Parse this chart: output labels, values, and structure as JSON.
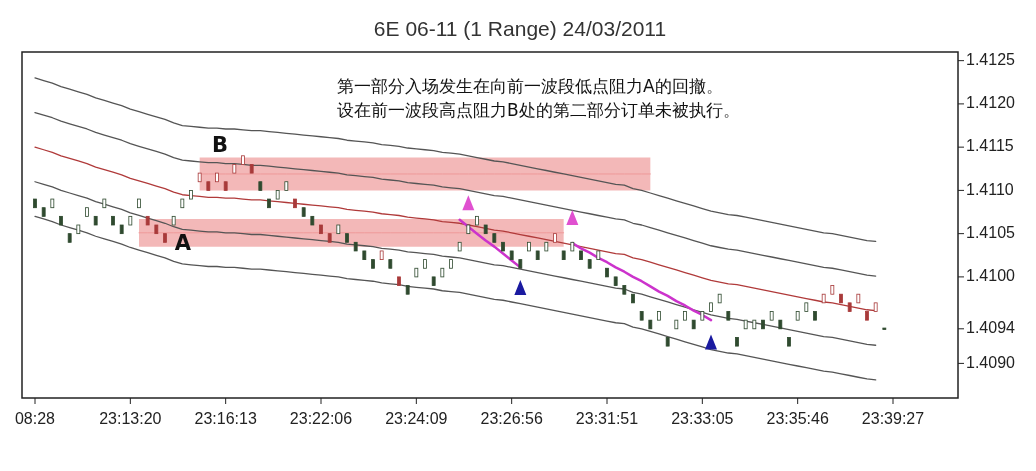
{
  "chart_data": {
    "type": "candlestick",
    "title": "6E 06-11 (1 Range)  24/03/2011",
    "categories": [
      "08:28",
      null,
      null,
      null,
      null,
      null,
      null,
      null,
      null,
      null,
      null,
      "23:13:20",
      null,
      null,
      null,
      null,
      null,
      null,
      null,
      null,
      null,
      null,
      "23:16:13",
      null,
      null,
      null,
      null,
      null,
      null,
      null,
      null,
      null,
      null,
      "23:22:06",
      null,
      null,
      null,
      null,
      null,
      null,
      null,
      null,
      null,
      null,
      "23:24:09",
      null,
      null,
      null,
      null,
      null,
      null,
      null,
      null,
      null,
      null,
      "23:26:56",
      null,
      null,
      null,
      null,
      null,
      null,
      null,
      null,
      null,
      null,
      "23:31:51",
      null,
      null,
      null,
      null,
      null,
      null,
      null,
      null,
      null,
      null,
      "23:33:05",
      null,
      null,
      null,
      null,
      null,
      null,
      null,
      null,
      null,
      null,
      "23:35:46",
      null,
      null,
      null,
      null,
      null,
      null,
      null,
      null,
      null,
      null,
      "23:39:27"
    ],
    "ohlc": [
      [
        1.4109,
        1.4109,
        1.4108,
        1.4108
      ],
      [
        1.4108,
        1.4108,
        1.4107,
        1.4107
      ],
      [
        1.4108,
        1.4109,
        1.4108,
        1.4109
      ],
      [
        1.4107,
        1.4107,
        1.4106,
        1.4106
      ],
      [
        1.4105,
        1.4105,
        1.4104,
        1.4104
      ],
      [
        1.4105,
        1.4106,
        1.4105,
        1.4106
      ],
      [
        1.4107,
        1.4108,
        1.4107,
        1.4108
      ],
      [
        1.4107,
        1.4107,
        1.4106,
        1.4106
      ],
      [
        1.4108,
        1.4109,
        1.4108,
        1.4109
      ],
      [
        1.4107,
        1.4107,
        1.4106,
        1.4106
      ],
      [
        1.4106,
        1.4106,
        1.4105,
        1.4105
      ],
      [
        1.4106,
        1.4107,
        1.4106,
        1.4107
      ],
      [
        1.4108,
        1.4109,
        1.4108,
        1.4109
      ],
      [
        1.4107,
        1.4107,
        1.4106,
        1.4106
      ],
      [
        1.4106,
        1.4106,
        1.4105,
        1.4105
      ],
      [
        1.4105,
        1.4105,
        1.4104,
        1.4104
      ],
      [
        1.4106,
        1.4107,
        1.4106,
        1.4107
      ],
      [
        1.4108,
        1.4109,
        1.4108,
        1.4109
      ],
      [
        1.4109,
        1.411,
        1.4109,
        1.411
      ],
      [
        1.4111,
        1.4112,
        1.4111,
        1.4112
      ],
      [
        1.4111,
        1.4111,
        1.411,
        1.411
      ],
      [
        1.4111,
        1.4112,
        1.4111,
        1.4112
      ],
      [
        1.4111,
        1.4111,
        1.411,
        1.411
      ],
      [
        1.4112,
        1.4113,
        1.4112,
        1.4113
      ],
      [
        1.4113,
        1.4114,
        1.4113,
        1.4114
      ],
      [
        1.4113,
        1.4113,
        1.4112,
        1.4112
      ],
      [
        1.4111,
        1.4111,
        1.411,
        1.411
      ],
      [
        1.4109,
        1.4109,
        1.4108,
        1.4108
      ],
      [
        1.4109,
        1.411,
        1.4109,
        1.411
      ],
      [
        1.411,
        1.4111,
        1.411,
        1.4111
      ],
      [
        1.4109,
        1.4109,
        1.4108,
        1.4108
      ],
      [
        1.4108,
        1.4108,
        1.4107,
        1.4107
      ],
      [
        1.4107,
        1.4107,
        1.4106,
        1.4106
      ],
      [
        1.4106,
        1.4106,
        1.4105,
        1.4105
      ],
      [
        1.4105,
        1.4105,
        1.4104,
        1.4104
      ],
      [
        1.4105,
        1.4106,
        1.4105,
        1.4106
      ],
      [
        1.4105,
        1.4105,
        1.4104,
        1.4104
      ],
      [
        1.4104,
        1.4104,
        1.4103,
        1.4103
      ],
      [
        1.4103,
        1.4103,
        1.4102,
        1.4102
      ],
      [
        1.4102,
        1.4102,
        1.4101,
        1.4101
      ],
      [
        1.4102,
        1.4103,
        1.4102,
        1.4103
      ],
      [
        1.4102,
        1.4102,
        1.4101,
        1.4101
      ],
      [
        1.41,
        1.41,
        1.4099,
        1.4099
      ],
      [
        1.4099,
        1.4099,
        1.4098,
        1.4098
      ],
      [
        1.41,
        1.4101,
        1.41,
        1.4101
      ],
      [
        1.4101,
        1.4102,
        1.4101,
        1.4102
      ],
      [
        1.41,
        1.41,
        1.4099,
        1.4099
      ],
      [
        1.41,
        1.4101,
        1.41,
        1.4101
      ],
      [
        1.4101,
        1.4102,
        1.4101,
        1.4102
      ],
      [
        1.4103,
        1.4104,
        1.4103,
        1.4104
      ],
      [
        1.4105,
        1.4106,
        1.4105,
        1.4106
      ],
      [
        1.4106,
        1.4107,
        1.4106,
        1.4107
      ],
      [
        1.4106,
        1.4106,
        1.4105,
        1.4105
      ],
      [
        1.4105,
        1.4105,
        1.4104,
        1.4104
      ],
      [
        1.4104,
        1.4104,
        1.4103,
        1.4103
      ],
      [
        1.4103,
        1.4103,
        1.4102,
        1.4102
      ],
      [
        1.4102,
        1.4102,
        1.4101,
        1.4101
      ],
      [
        1.4103,
        1.4104,
        1.4103,
        1.4104
      ],
      [
        1.4103,
        1.4103,
        1.4102,
        1.4102
      ],
      [
        1.4103,
        1.4104,
        1.4103,
        1.4104
      ],
      [
        1.4104,
        1.4105,
        1.4104,
        1.4105
      ],
      [
        1.4103,
        1.4103,
        1.4102,
        1.4102
      ],
      [
        1.4103,
        1.4104,
        1.4103,
        1.4104
      ],
      [
        1.4103,
        1.4103,
        1.4102,
        1.4102
      ],
      [
        1.4102,
        1.4102,
        1.4101,
        1.4101
      ],
      [
        1.4102,
        1.4103,
        1.4102,
        1.4103
      ],
      [
        1.4101,
        1.4101,
        1.41,
        1.41
      ],
      [
        1.41,
        1.41,
        1.4099,
        1.4099
      ],
      [
        1.4099,
        1.4099,
        1.4098,
        1.4098
      ],
      [
        1.4098,
        1.4098,
        1.4097,
        1.4097
      ],
      [
        1.4096,
        1.4096,
        1.4095,
        1.4095
      ],
      [
        1.4095,
        1.4095,
        1.4094,
        1.4094
      ],
      [
        1.4095,
        1.4096,
        1.4095,
        1.4096
      ],
      [
        1.4093,
        1.4093,
        1.4092,
        1.4092
      ],
      [
        1.4094,
        1.4095,
        1.4094,
        1.4095
      ],
      [
        1.4095,
        1.4096,
        1.4095,
        1.4096
      ],
      [
        1.4095,
        1.4095,
        1.4094,
        1.4094
      ],
      [
        1.4095,
        1.4096,
        1.4095,
        1.4096
      ],
      [
        1.4096,
        1.4097,
        1.4096,
        1.4097
      ],
      [
        1.4097,
        1.4098,
        1.4097,
        1.4098
      ],
      [
        1.4096,
        1.4096,
        1.4095,
        1.4095
      ],
      [
        1.4093,
        1.4093,
        1.4092,
        1.4092
      ],
      [
        1.4094,
        1.4095,
        1.4094,
        1.4095
      ],
      [
        1.4094,
        1.4095,
        1.4094,
        1.4095
      ],
      [
        1.4095,
        1.4095,
        1.4094,
        1.4094
      ],
      [
        1.4095,
        1.4096,
        1.4095,
        1.4096
      ],
      [
        1.4095,
        1.4095,
        1.4094,
        1.4094
      ],
      [
        1.4093,
        1.4093,
        1.4092,
        1.4092
      ],
      [
        1.4095,
        1.4096,
        1.4095,
        1.4096
      ],
      [
        1.4096,
        1.4097,
        1.4096,
        1.4097
      ],
      [
        1.4096,
        1.4096,
        1.4095,
        1.4095
      ],
      [
        1.4097,
        1.4098,
        1.4097,
        1.4098
      ],
      [
        1.4098,
        1.4099,
        1.4098,
        1.4099
      ],
      [
        1.4098,
        1.4098,
        1.4097,
        1.4097
      ],
      [
        1.4097,
        1.4097,
        1.4096,
        1.4096
      ],
      [
        1.4097,
        1.4098,
        1.4097,
        1.4098
      ],
      [
        1.4096,
        1.4096,
        1.4095,
        1.4095
      ],
      [
        1.4096,
        1.4097,
        1.4096,
        1.4097
      ],
      [
        1.4094,
        1.4094,
        1.4094,
        1.4094
      ],
      null
    ],
    "colors": [
      "#2f4a2f",
      "#2f4a2f",
      "#2f4a2f",
      "#2f4a2f",
      "#2f4a2f",
      "#2f4a2f",
      "#2f4a2f",
      "#2f4a2f",
      "#2f4a2f",
      "#2f4a2f",
      "#2f4a2f",
      "#2f4a2f",
      "#2f4a2f",
      "#a83a3a",
      "#a83a3a",
      "#a83a3a",
      "#2f4a2f",
      "#2f4a2f",
      "#2f4a2f",
      "#a83a3a",
      "#a83a3a",
      "#a83a3a",
      "#a83a3a",
      "#a83a3a",
      "#a83a3a",
      "#a83a3a",
      "#2f4a2f",
      "#2f4a2f",
      "#2f4a2f",
      "#2f4a2f",
      "#a83a3a",
      "#2f4a2f",
      "#2f4a2f",
      "#a83a3a",
      "#a83a3a",
      "#2f4a2f",
      "#2f4a2f",
      "#2f4a2f",
      "#2f4a2f",
      "#2f4a2f",
      "#a83a3a",
      "#2f4a2f",
      "#a83a3a",
      "#2f4a2f",
      "#2f4a2f",
      "#2f4a2f",
      "#2f4a2f",
      "#2f4a2f",
      "#2f4a2f",
      "#2f4a2f",
      "#2f4a2f",
      "#2f4a2f",
      "#2f4a2f",
      "#2f4a2f",
      "#2f4a2f",
      "#2f4a2f",
      "#2f4a2f",
      "#2f4a2f",
      "#2f4a2f",
      "#2f4a2f",
      "#a83a3a",
      "#2f4a2f",
      "#2f4a2f",
      "#2f4a2f",
      "#2f4a2f",
      "#2f4a2f",
      "#2f4a2f",
      "#2f4a2f",
      "#2f4a2f",
      "#2f4a2f",
      "#2f4a2f",
      "#2f4a2f",
      "#2f4a2f",
      "#2f4a2f",
      "#2f4a2f",
      "#2f4a2f",
      "#2f4a2f",
      "#2f4a2f",
      "#2f4a2f",
      "#2f4a2f",
      "#2f4a2f",
      "#2f4a2f",
      "#2f4a2f",
      "#2f4a2f",
      "#2f4a2f",
      "#2f4a2f",
      "#2f4a2f",
      "#2f4a2f",
      "#2f4a2f",
      "#2f4a2f",
      "#2f4a2f",
      "#a83a3a",
      "#a83a3a",
      "#a83a3a",
      "#a83a3a",
      "#a83a3a",
      "#a83a3a",
      "#a83a3a",
      "#2f4a2f",
      null
    ],
    "ylim": [
      1.4086,
      1.4126
    ],
    "yticks": [
      {
        "value": 1.409,
        "label": "1.4090"
      },
      1.4094,
      {
        "value": 1.41,
        "label": "1.4100"
      },
      1.4105,
      {
        "value": 1.411,
        "label": "1.4110"
      },
      1.4115,
      {
        "value": 1.412,
        "label": "1.4120"
      },
      1.4125
    ],
    "series": [
      {
        "type": "line",
        "color": "#ee9a9a",
        "values": [
          null,
          null,
          null,
          null,
          null,
          null,
          null,
          null,
          null,
          null,
          null,
          null,
          1.41051,
          1.41051,
          1.41051,
          1.41051,
          1.41051,
          1.41051,
          1.41051,
          1.41051,
          1.41051,
          1.41051,
          1.41051,
          1.41051,
          1.41051,
          1.41051,
          1.41051,
          1.41051,
          1.41051,
          1.41051,
          1.41051,
          1.41051,
          1.41051,
          1.41051,
          1.41051,
          1.41051,
          1.41051,
          1.41051,
          1.41051,
          1.41051,
          1.41051,
          1.41051,
          1.41051,
          1.41051,
          1.41051,
          1.41051,
          1.41051,
          1.41051,
          1.41051,
          1.41051,
          1.41051,
          1.41051,
          1.41051,
          1.41051,
          1.41051,
          1.41051,
          1.41051,
          1.41051,
          1.41051,
          1.41051,
          1.41051,
          1.41051,
          null,
          null,
          null,
          null,
          null,
          null,
          null,
          null,
          null,
          null,
          null,
          null,
          null,
          null,
          null,
          null,
          null,
          null,
          null,
          null,
          null,
          null,
          null,
          null,
          null,
          null,
          null,
          null,
          null,
          null,
          null,
          null,
          null,
          null,
          null,
          null,
          null,
          null
        ],
        "lower": [
          null,
          null,
          null,
          null,
          null,
          null,
          null,
          null,
          null,
          null,
          null,
          null,
          1.41035,
          1.41035,
          1.41035,
          1.41035,
          1.41035,
          1.41035,
          1.41035,
          1.41035,
          1.41035,
          1.41035,
          1.41035,
          1.41035,
          1.41035,
          1.41035,
          1.41035,
          1.41035,
          1.41035,
          1.41035,
          1.41035,
          1.41035,
          1.41035,
          1.41035,
          1.41035,
          1.41035,
          1.41035,
          1.41035,
          1.41035,
          1.41035,
          1.41035,
          1.41035,
          1.41035,
          1.41035,
          1.41035,
          1.41035,
          1.41035,
          1.41035,
          1.41035,
          1.41035,
          1.41035,
          1.41035,
          1.41035,
          1.41035,
          1.41035,
          1.41035,
          1.41035,
          1.41035,
          1.41035,
          1.41035,
          1.41035,
          1.41035,
          null,
          null,
          null,
          null,
          null,
          null,
          null,
          null,
          null,
          null,
          null,
          null,
          null,
          null,
          null,
          null,
          null,
          null,
          null,
          null,
          null,
          null,
          null,
          null,
          null,
          null,
          null,
          null,
          null,
          null,
          null,
          null,
          null,
          null,
          null,
          null,
          null,
          null
        ],
        "upper": [
          null,
          null,
          null,
          null,
          null,
          null,
          null,
          null,
          null,
          null,
          null,
          null,
          1.41067,
          1.41067,
          1.41067,
          1.41067,
          1.41067,
          1.41067,
          1.41067,
          1.41067,
          1.41067,
          1.41067,
          1.41067,
          1.41067,
          1.41067,
          1.41067,
          1.41067,
          1.41067,
          1.41067,
          1.41067,
          1.41067,
          1.41067,
          1.41067,
          1.41067,
          1.41067,
          1.41067,
          1.41067,
          1.41067,
          1.41067,
          1.41067,
          1.41067,
          1.41067,
          1.41067,
          1.41067,
          1.41067,
          1.41067,
          1.41067,
          1.41067,
          1.41067,
          1.41067,
          1.41067,
          1.41067,
          1.41067,
          1.41067,
          1.41067,
          1.41067,
          1.41067,
          1.41067,
          1.41067,
          1.41067,
          1.41067,
          1.41067,
          null,
          null,
          null,
          null,
          null,
          null,
          null,
          null,
          null,
          null,
          null,
          null,
          null,
          null,
          null,
          null,
          null,
          null,
          null,
          null,
          null,
          null,
          null,
          null,
          null,
          null,
          null,
          null,
          null,
          null,
          null,
          null,
          null,
          null,
          null,
          null,
          null,
          null
        ]
      },
      {
        "type": "line",
        "color": "#ee9a9a",
        "values": [
          null,
          null,
          null,
          null,
          null,
          null,
          null,
          null,
          null,
          null,
          null,
          null,
          null,
          null,
          null,
          null,
          null,
          null,
          null,
          1.41119,
          1.41119,
          1.41119,
          1.41119,
          1.41119,
          1.41119,
          1.41119,
          1.41119,
          1.41119,
          1.41119,
          1.41119,
          1.41119,
          1.41119,
          1.41119,
          1.41119,
          1.41119,
          1.41119,
          1.41119,
          1.41119,
          1.41119,
          1.41119,
          1.41119,
          1.41119,
          1.41119,
          1.41119,
          1.41119,
          1.41119,
          1.41119,
          1.41119,
          1.41119,
          1.41119,
          1.41119,
          1.41119,
          1.41119,
          1.41119,
          1.41119,
          1.41119,
          1.41119,
          1.41119,
          1.41119,
          1.41119,
          1.41119,
          1.41119,
          1.41119,
          1.41119,
          1.41119,
          1.41119,
          1.41119,
          1.41119,
          1.41119,
          1.41119,
          1.41119,
          1.41119,
          null,
          null,
          null,
          null,
          null,
          null,
          null,
          null,
          null,
          null,
          null,
          null,
          null,
          null,
          null,
          null,
          null,
          null,
          null,
          null,
          null,
          null,
          null,
          null,
          null,
          null,
          null,
          null
        ],
        "lower": [
          null,
          null,
          null,
          null,
          null,
          null,
          null,
          null,
          null,
          null,
          null,
          null,
          null,
          null,
          null,
          null,
          null,
          null,
          null,
          1.411,
          1.411,
          1.411,
          1.411,
          1.411,
          1.411,
          1.411,
          1.411,
          1.411,
          1.411,
          1.411,
          1.411,
          1.411,
          1.411,
          1.411,
          1.411,
          1.411,
          1.411,
          1.411,
          1.411,
          1.411,
          1.411,
          1.411,
          1.411,
          1.411,
          1.411,
          1.411,
          1.411,
          1.411,
          1.411,
          1.411,
          1.411,
          1.411,
          1.411,
          1.411,
          1.411,
          1.411,
          1.411,
          1.411,
          1.411,
          1.411,
          1.411,
          1.411,
          1.411,
          1.411,
          1.411,
          1.411,
          1.411,
          1.411,
          1.411,
          1.411,
          1.411,
          1.411,
          null,
          null,
          null,
          null,
          null,
          null,
          null,
          null,
          null,
          null,
          null,
          null,
          null,
          null,
          null,
          null,
          null,
          null,
          null,
          null,
          null,
          null,
          null,
          null,
          null,
          null,
          null,
          null
        ],
        "upper": [
          null,
          null,
          null,
          null,
          null,
          null,
          null,
          null,
          null,
          null,
          null,
          null,
          null,
          null,
          null,
          null,
          null,
          null,
          null,
          1.41138,
          1.41138,
          1.41138,
          1.41138,
          1.41138,
          1.41138,
          1.41138,
          1.41138,
          1.41138,
          1.41138,
          1.41138,
          1.41138,
          1.41138,
          1.41138,
          1.41138,
          1.41138,
          1.41138,
          1.41138,
          1.41138,
          1.41138,
          1.41138,
          1.41138,
          1.41138,
          1.41138,
          1.41138,
          1.41138,
          1.41138,
          1.41138,
          1.41138,
          1.41138,
          1.41138,
          1.41138,
          1.41138,
          1.41138,
          1.41138,
          1.41138,
          1.41138,
          1.41138,
          1.41138,
          1.41138,
          1.41138,
          1.41138,
          1.41138,
          1.41138,
          1.41138,
          1.41138,
          1.41138,
          1.41138,
          1.41138,
          1.41138,
          1.41138,
          1.41138,
          1.41138,
          null,
          null,
          null,
          null,
          null,
          null,
          null,
          null,
          null,
          null,
          null,
          null,
          null,
          null,
          null,
          null,
          null,
          null,
          null,
          null,
          null,
          null,
          null,
          null,
          null,
          null,
          null,
          null
        ]
      },
      {
        "type": "line",
        "color": "#555555",
        "values": [
          1.4123,
          1.41227,
          1.41224,
          1.4122,
          1.41217,
          1.41214,
          1.41211,
          1.41207,
          1.41204,
          1.41201,
          1.41198,
          1.41194,
          1.41191,
          1.41188,
          1.41185,
          1.41182,
          1.41178,
          1.41175,
          1.41174,
          1.41173,
          1.41172,
          1.41172,
          1.41171,
          1.41171,
          1.4117,
          1.41169,
          1.41169,
          1.41168,
          1.41167,
          1.41166,
          1.41165,
          1.41164,
          1.41163,
          1.41162,
          1.41161,
          1.4116,
          1.41158,
          1.41157,
          1.41156,
          1.41155,
          1.41153,
          1.41152,
          1.41151,
          1.41149,
          1.41148,
          1.41147,
          1.41146,
          1.41144,
          1.41143,
          1.41142,
          1.4114,
          1.41138,
          1.41136,
          1.41134,
          1.41133,
          1.41131,
          1.41129,
          1.41127,
          1.41125,
          1.41123,
          1.41121,
          1.41119,
          1.41117,
          1.41115,
          1.41113,
          1.41111,
          1.41109,
          1.41107,
          1.41106,
          1.41102,
          1.411,
          1.41097,
          1.41094,
          1.41091,
          1.41088,
          1.41085,
          1.41082,
          1.41079,
          1.41076,
          1.41074,
          1.41072,
          1.41071,
          1.41069,
          1.41067,
          1.41065,
          1.41063,
          1.41061,
          1.41059,
          1.41057,
          1.41055,
          1.41053,
          1.41051,
          1.4105,
          1.41048,
          1.41046,
          1.41044,
          1.41042,
          1.41041,
          null,
          null
        ]
      },
      {
        "type": "line",
        "color": "#555555",
        "values": [
          1.4119,
          1.41187,
          1.41184,
          1.4118,
          1.41177,
          1.41174,
          1.41171,
          1.41167,
          1.41164,
          1.41161,
          1.41158,
          1.41154,
          1.41151,
          1.41148,
          1.41145,
          1.41142,
          1.41138,
          1.41135,
          1.41134,
          1.41133,
          1.41132,
          1.41132,
          1.41131,
          1.41131,
          1.4113,
          1.41129,
          1.41129,
          1.41128,
          1.41127,
          1.41126,
          1.41125,
          1.41124,
          1.41123,
          1.41122,
          1.41121,
          1.4112,
          1.41118,
          1.41117,
          1.41116,
          1.41115,
          1.41113,
          1.41112,
          1.41111,
          1.41109,
          1.41108,
          1.41107,
          1.41106,
          1.41104,
          1.41103,
          1.41102,
          1.411,
          1.41098,
          1.41096,
          1.41094,
          1.41093,
          1.41091,
          1.41089,
          1.41087,
          1.41085,
          1.41083,
          1.41081,
          1.41079,
          1.41077,
          1.41075,
          1.41073,
          1.41071,
          1.41069,
          1.41067,
          1.41066,
          1.41062,
          1.4106,
          1.41057,
          1.41054,
          1.41051,
          1.41048,
          1.41045,
          1.41042,
          1.41039,
          1.41036,
          1.41034,
          1.41032,
          1.41031,
          1.41029,
          1.41027,
          1.41025,
          1.41023,
          1.41021,
          1.41019,
          1.41017,
          1.41015,
          1.41013,
          1.41011,
          1.4101,
          1.41008,
          1.41006,
          1.41004,
          1.41002,
          1.41001,
          null,
          null
        ]
      },
      {
        "type": "line",
        "color": "#b03a3a",
        "values": [
          1.4115,
          1.41147,
          1.41144,
          1.4114,
          1.41137,
          1.41134,
          1.41131,
          1.41127,
          1.41124,
          1.41121,
          1.41118,
          1.41114,
          1.41111,
          1.41108,
          1.41105,
          1.41102,
          1.41098,
          1.41095,
          1.41094,
          1.41093,
          1.41092,
          1.41092,
          1.41091,
          1.41091,
          1.4109,
          1.41089,
          1.41089,
          1.41088,
          1.41087,
          1.41086,
          1.41085,
          1.41084,
          1.41083,
          1.41082,
          1.41081,
          1.4108,
          1.41078,
          1.41077,
          1.41076,
          1.41075,
          1.41073,
          1.41072,
          1.41071,
          1.41069,
          1.41068,
          1.41067,
          1.41066,
          1.41064,
          1.41063,
          1.41062,
          1.4106,
          1.41058,
          1.41056,
          1.41054,
          1.41053,
          1.41051,
          1.41049,
          1.41047,
          1.41045,
          1.41043,
          1.41041,
          1.41039,
          1.41037,
          1.41035,
          1.41033,
          1.41031,
          1.41029,
          1.41027,
          1.41026,
          1.41022,
          1.4102,
          1.41017,
          1.41014,
          1.41011,
          1.41008,
          1.41005,
          1.41002,
          1.40999,
          1.40996,
          1.40994,
          1.40992,
          1.40991,
          1.40989,
          1.40987,
          1.40985,
          1.40983,
          1.40981,
          1.40979,
          1.40977,
          1.40975,
          1.40973,
          1.40971,
          1.4097,
          1.40968,
          1.40966,
          1.40964,
          1.40962,
          1.40961,
          null,
          null
        ]
      },
      {
        "type": "line",
        "color": "#555555",
        "values": [
          1.4111,
          1.41107,
          1.41104,
          1.411,
          1.41097,
          1.41094,
          1.41091,
          1.41087,
          1.41084,
          1.41081,
          1.41078,
          1.41074,
          1.41071,
          1.41068,
          1.41065,
          1.41062,
          1.41058,
          1.41055,
          1.41054,
          1.41053,
          1.41052,
          1.41052,
          1.41051,
          1.41051,
          1.4105,
          1.41049,
          1.41049,
          1.41048,
          1.41047,
          1.41046,
          1.41045,
          1.41044,
          1.41043,
          1.41042,
          1.41041,
          1.4104,
          1.41038,
          1.41037,
          1.41036,
          1.41035,
          1.41033,
          1.41032,
          1.41031,
          1.41029,
          1.41028,
          1.41027,
          1.41026,
          1.41024,
          1.41023,
          1.41022,
          1.4102,
          1.41018,
          1.41016,
          1.41014,
          1.41013,
          1.41011,
          1.41009,
          1.41007,
          1.41005,
          1.41003,
          1.41001,
          1.40999,
          1.40997,
          1.40995,
          1.40993,
          1.40991,
          1.40989,
          1.40987,
          1.40986,
          1.40982,
          1.4098,
          1.40977,
          1.40974,
          1.40971,
          1.40968,
          1.40965,
          1.40962,
          1.40959,
          1.40956,
          1.40954,
          1.40952,
          1.40951,
          1.40949,
          1.40947,
          1.40945,
          1.40943,
          1.40941,
          1.40939,
          1.40937,
          1.40935,
          1.40933,
          1.40931,
          1.4093,
          1.40928,
          1.40926,
          1.40924,
          1.40922,
          1.40921,
          null,
          null
        ]
      },
      {
        "type": "line",
        "color": "#555555",
        "values": [
          1.4107,
          1.41067,
          1.41064,
          1.4106,
          1.41057,
          1.41054,
          1.41051,
          1.41047,
          1.41044,
          1.41041,
          1.41038,
          1.41034,
          1.41031,
          1.41028,
          1.41025,
          1.41022,
          1.41018,
          1.41015,
          1.41014,
          1.41013,
          1.41012,
          1.41012,
          1.41011,
          1.41011,
          1.4101,
          1.41009,
          1.41009,
          1.41008,
          1.41007,
          1.41006,
          1.41005,
          1.41004,
          1.41003,
          1.41002,
          1.41001,
          1.41,
          1.40998,
          1.40997,
          1.40996,
          1.40995,
          1.40993,
          1.40992,
          1.40991,
          1.40989,
          1.40988,
          1.40987,
          1.40986,
          1.40984,
          1.40983,
          1.40982,
          1.4098,
          1.40978,
          1.40976,
          1.40974,
          1.40973,
          1.40971,
          1.40969,
          1.40967,
          1.40965,
          1.40963,
          1.40961,
          1.40959,
          1.40957,
          1.40955,
          1.40953,
          1.40951,
          1.40949,
          1.40947,
          1.40946,
          1.40942,
          1.4094,
          1.40937,
          1.40934,
          1.40931,
          1.40928,
          1.40925,
          1.40922,
          1.40919,
          1.40916,
          1.40914,
          1.40912,
          1.40911,
          1.40909,
          1.40907,
          1.40905,
          1.40903,
          1.40901,
          1.40899,
          1.40897,
          1.40895,
          1.40893,
          1.40891,
          1.4089,
          1.40888,
          1.40886,
          1.40884,
          1.40882,
          1.40881,
          null,
          null
        ]
      },
      {
        "type": "line",
        "color": "#cc33cc",
        "values": [
          null,
          null,
          null,
          null,
          null,
          null,
          null,
          null,
          null,
          null,
          null,
          null,
          null,
          null,
          null,
          null,
          null,
          null,
          null,
          null,
          null,
          null,
          null,
          null,
          null,
          null,
          null,
          null,
          null,
          null,
          null,
          null,
          null,
          null,
          null,
          null,
          null,
          null,
          null,
          null,
          null,
          null,
          null,
          null,
          null,
          null,
          null,
          null,
          null,
          1.41066,
          1.41058,
          1.4105,
          1.41042,
          1.41035,
          1.41027,
          1.41019,
          1.41011,
          null,
          null,
          null,
          null,
          null,
          1.41039,
          1.41033,
          1.41028,
          1.41022,
          1.41017,
          1.41011,
          1.41006,
          1.41,
          1.40995,
          1.40989,
          1.40983,
          1.40978,
          1.40972,
          1.40967,
          1.40961,
          1.40956,
          1.4095,
          null,
          null,
          null,
          null,
          null,
          null,
          null,
          null,
          null,
          null,
          null,
          null,
          null,
          null,
          null,
          null,
          null,
          null,
          null,
          null,
          null
        ]
      },
      {
        "type": "scatter",
        "color": "#e050d0",
        "marker": "triangle",
        "values": [
          null,
          null,
          null,
          null,
          null,
          null,
          null,
          null,
          null,
          null,
          null,
          null,
          null,
          null,
          null,
          null,
          null,
          null,
          null,
          null,
          null,
          null,
          null,
          null,
          null,
          null,
          null,
          null,
          null,
          null,
          null,
          null,
          null,
          null,
          null,
          null,
          null,
          null,
          null,
          null,
          null,
          null,
          null,
          null,
          null,
          null,
          null,
          null,
          null,
          null,
          1.41084,
          null,
          null,
          null,
          null,
          null,
          null,
          null,
          null,
          null,
          null,
          null,
          1.41067,
          null,
          null,
          null,
          null,
          null,
          null,
          null,
          null,
          null,
          null,
          null,
          null,
          null,
          null,
          null,
          null,
          null,
          null,
          null,
          null,
          null,
          null,
          null,
          null,
          null,
          null,
          null,
          null,
          null,
          null,
          null,
          null,
          null,
          null,
          null,
          null,
          null
        ]
      },
      {
        "type": "scatter",
        "color": "#1a1aa0",
        "marker": "triangle",
        "values": [
          null,
          null,
          null,
          null,
          null,
          null,
          null,
          null,
          null,
          null,
          null,
          null,
          null,
          null,
          null,
          null,
          null,
          null,
          null,
          null,
          null,
          null,
          null,
          null,
          null,
          null,
          null,
          null,
          null,
          null,
          null,
          null,
          null,
          null,
          null,
          null,
          null,
          null,
          null,
          null,
          null,
          null,
          null,
          null,
          null,
          null,
          null,
          null,
          null,
          null,
          null,
          null,
          null,
          null,
          null,
          null,
          1.40986,
          null,
          null,
          null,
          null,
          null,
          null,
          null,
          null,
          null,
          null,
          null,
          null,
          null,
          null,
          null,
          null,
          null,
          null,
          null,
          null,
          null,
          1.40923,
          null,
          null,
          null,
          null,
          null,
          null,
          null,
          null,
          null,
          null,
          null,
          null,
          null,
          null,
          null,
          null,
          null,
          null,
          null,
          null,
          null
        ]
      }
    ],
    "annotations": [
      "第一部分入场发生在向前一波段低点阻力A的回撤。",
      "设在前一波段高点阻力B处的第二部分订单未被执行。",
      "A",
      "B"
    ]
  }
}
